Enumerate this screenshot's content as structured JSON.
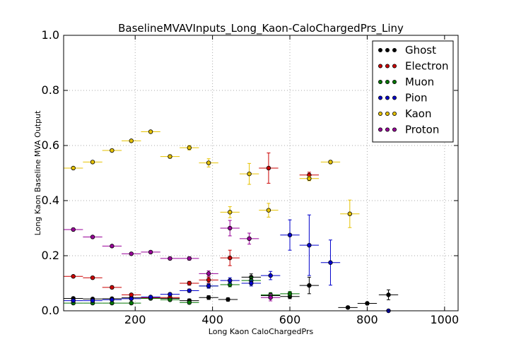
{
  "chart_data": {
    "type": "scatter",
    "title": "BaselineMVAVInputs_Long_Kaon-CaloChargedPrs_Liny",
    "xlabel": "Long Kaon CaloChargedPrs",
    "ylabel": "Long Kaon Baseline MVA Output",
    "xlim": [
      15,
      1035
    ],
    "ylim": [
      0,
      1.0
    ],
    "xticks": [
      200,
      400,
      600,
      800,
      1000
    ],
    "yticks": [
      0.0,
      0.2,
      0.4,
      0.6,
      0.8,
      1.0
    ],
    "xtick_labels": [
      "200",
      "400",
      "600",
      "800",
      "1000"
    ],
    "ytick_labels": [
      "0.0",
      "0.2",
      "0.4",
      "0.6",
      "0.8",
      "1.0"
    ],
    "grid": true,
    "legend_position": "top-right",
    "bin_half_width": 25,
    "series": [
      {
        "name": "Ghost",
        "color": "#000000",
        "points": [
          {
            "x": 40,
            "y": 0.045,
            "err": 0.004
          },
          {
            "x": 90,
            "y": 0.043,
            "err": 0.004
          },
          {
            "x": 140,
            "y": 0.044,
            "err": 0.004
          },
          {
            "x": 190,
            "y": 0.047,
            "err": 0.005
          },
          {
            "x": 240,
            "y": 0.045,
            "err": 0.005
          },
          {
            "x": 290,
            "y": 0.045,
            "err": 0.006
          },
          {
            "x": 340,
            "y": 0.037,
            "err": 0.006
          },
          {
            "x": 390,
            "y": 0.048,
            "err": 0.007
          },
          {
            "x": 440,
            "y": 0.041,
            "err": 0.006
          },
          {
            "x": 500,
            "y": 0.122,
            "err": 0.012
          },
          {
            "x": 550,
            "y": 0.055,
            "err": 0.008
          },
          {
            "x": 600,
            "y": 0.052,
            "err": 0.008
          },
          {
            "x": 650,
            "y": 0.092,
            "err": 0.03
          },
          {
            "x": 750,
            "y": 0.012,
            "err": 0.004
          },
          {
            "x": 800,
            "y": 0.027,
            "err": 0.005
          },
          {
            "x": 855,
            "y": 0.058,
            "err": 0.018
          }
        ]
      },
      {
        "name": "Electron",
        "color": "#cc0000",
        "points": [
          {
            "x": 40,
            "y": 0.125,
            "err": 0.004
          },
          {
            "x": 90,
            "y": 0.12,
            "err": 0.004
          },
          {
            "x": 140,
            "y": 0.085,
            "err": 0.005
          },
          {
            "x": 190,
            "y": 0.058,
            "err": 0.005
          },
          {
            "x": 240,
            "y": 0.047,
            "err": 0.005
          },
          {
            "x": 290,
            "y": 0.048,
            "err": 0.006
          },
          {
            "x": 340,
            "y": 0.1,
            "err": 0.007
          },
          {
            "x": 390,
            "y": 0.112,
            "err": 0.01
          },
          {
            "x": 445,
            "y": 0.192,
            "err": 0.028
          },
          {
            "x": 545,
            "y": 0.518,
            "err": 0.055
          },
          {
            "x": 650,
            "y": 0.493,
            "err": 0.01
          }
        ]
      },
      {
        "name": "Muon",
        "color": "#007700",
        "points": [
          {
            "x": 40,
            "y": 0.028,
            "err": 0.003
          },
          {
            "x": 90,
            "y": 0.028,
            "err": 0.003
          },
          {
            "x": 140,
            "y": 0.028,
            "err": 0.003
          },
          {
            "x": 190,
            "y": 0.028,
            "err": 0.004
          },
          {
            "x": 240,
            "y": 0.045,
            "err": 0.005
          },
          {
            "x": 290,
            "y": 0.04,
            "err": 0.005
          },
          {
            "x": 340,
            "y": 0.03,
            "err": 0.005
          },
          {
            "x": 390,
            "y": 0.09,
            "err": 0.008
          },
          {
            "x": 445,
            "y": 0.095,
            "err": 0.008
          },
          {
            "x": 500,
            "y": 0.11,
            "err": 0.012
          },
          {
            "x": 550,
            "y": 0.058,
            "err": 0.008
          },
          {
            "x": 600,
            "y": 0.062,
            "err": 0.008
          }
        ]
      },
      {
        "name": "Pion",
        "color": "#0000cc",
        "points": [
          {
            "x": 40,
            "y": 0.037,
            "err": 0.003
          },
          {
            "x": 90,
            "y": 0.037,
            "err": 0.003
          },
          {
            "x": 140,
            "y": 0.04,
            "err": 0.003
          },
          {
            "x": 190,
            "y": 0.044,
            "err": 0.004
          },
          {
            "x": 240,
            "y": 0.05,
            "err": 0.004
          },
          {
            "x": 290,
            "y": 0.06,
            "err": 0.005
          },
          {
            "x": 340,
            "y": 0.073,
            "err": 0.006
          },
          {
            "x": 390,
            "y": 0.09,
            "err": 0.008
          },
          {
            "x": 445,
            "y": 0.11,
            "err": 0.01
          },
          {
            "x": 500,
            "y": 0.1,
            "err": 0.01
          },
          {
            "x": 550,
            "y": 0.128,
            "err": 0.015
          },
          {
            "x": 600,
            "y": 0.275,
            "err": 0.055
          },
          {
            "x": 650,
            "y": 0.238,
            "err": 0.11
          },
          {
            "x": 705,
            "y": 0.175,
            "err": 0.082
          },
          {
            "x": 855,
            "y": 0.0,
            "err": 0.004
          }
        ]
      },
      {
        "name": "Kaon",
        "color": "#e6c200",
        "points": [
          {
            "x": 40,
            "y": 0.518,
            "err": 0.004
          },
          {
            "x": 90,
            "y": 0.54,
            "err": 0.004
          },
          {
            "x": 140,
            "y": 0.582,
            "err": 0.004
          },
          {
            "x": 190,
            "y": 0.617,
            "err": 0.005
          },
          {
            "x": 240,
            "y": 0.65,
            "err": 0.005
          },
          {
            "x": 290,
            "y": 0.56,
            "err": 0.006
          },
          {
            "x": 340,
            "y": 0.592,
            "err": 0.008
          },
          {
            "x": 390,
            "y": 0.537,
            "err": 0.015
          },
          {
            "x": 445,
            "y": 0.358,
            "err": 0.02
          },
          {
            "x": 495,
            "y": 0.497,
            "err": 0.038
          },
          {
            "x": 545,
            "y": 0.365,
            "err": 0.025
          },
          {
            "x": 650,
            "y": 0.48,
            "err": 0.008
          },
          {
            "x": 705,
            "y": 0.54,
            "err": 0.006
          },
          {
            "x": 755,
            "y": 0.352,
            "err": 0.05
          }
        ]
      },
      {
        "name": "Proton",
        "color": "#990099",
        "points": [
          {
            "x": 40,
            "y": 0.295,
            "err": 0.004
          },
          {
            "x": 90,
            "y": 0.268,
            "err": 0.004
          },
          {
            "x": 140,
            "y": 0.235,
            "err": 0.004
          },
          {
            "x": 190,
            "y": 0.207,
            "err": 0.004
          },
          {
            "x": 240,
            "y": 0.213,
            "err": 0.004
          },
          {
            "x": 290,
            "y": 0.19,
            "err": 0.005
          },
          {
            "x": 340,
            "y": 0.19,
            "err": 0.006
          },
          {
            "x": 390,
            "y": 0.135,
            "err": 0.01
          },
          {
            "x": 445,
            "y": 0.3,
            "err": 0.028
          },
          {
            "x": 495,
            "y": 0.262,
            "err": 0.02
          },
          {
            "x": 550,
            "y": 0.048,
            "err": 0.012
          }
        ]
      }
    ]
  }
}
